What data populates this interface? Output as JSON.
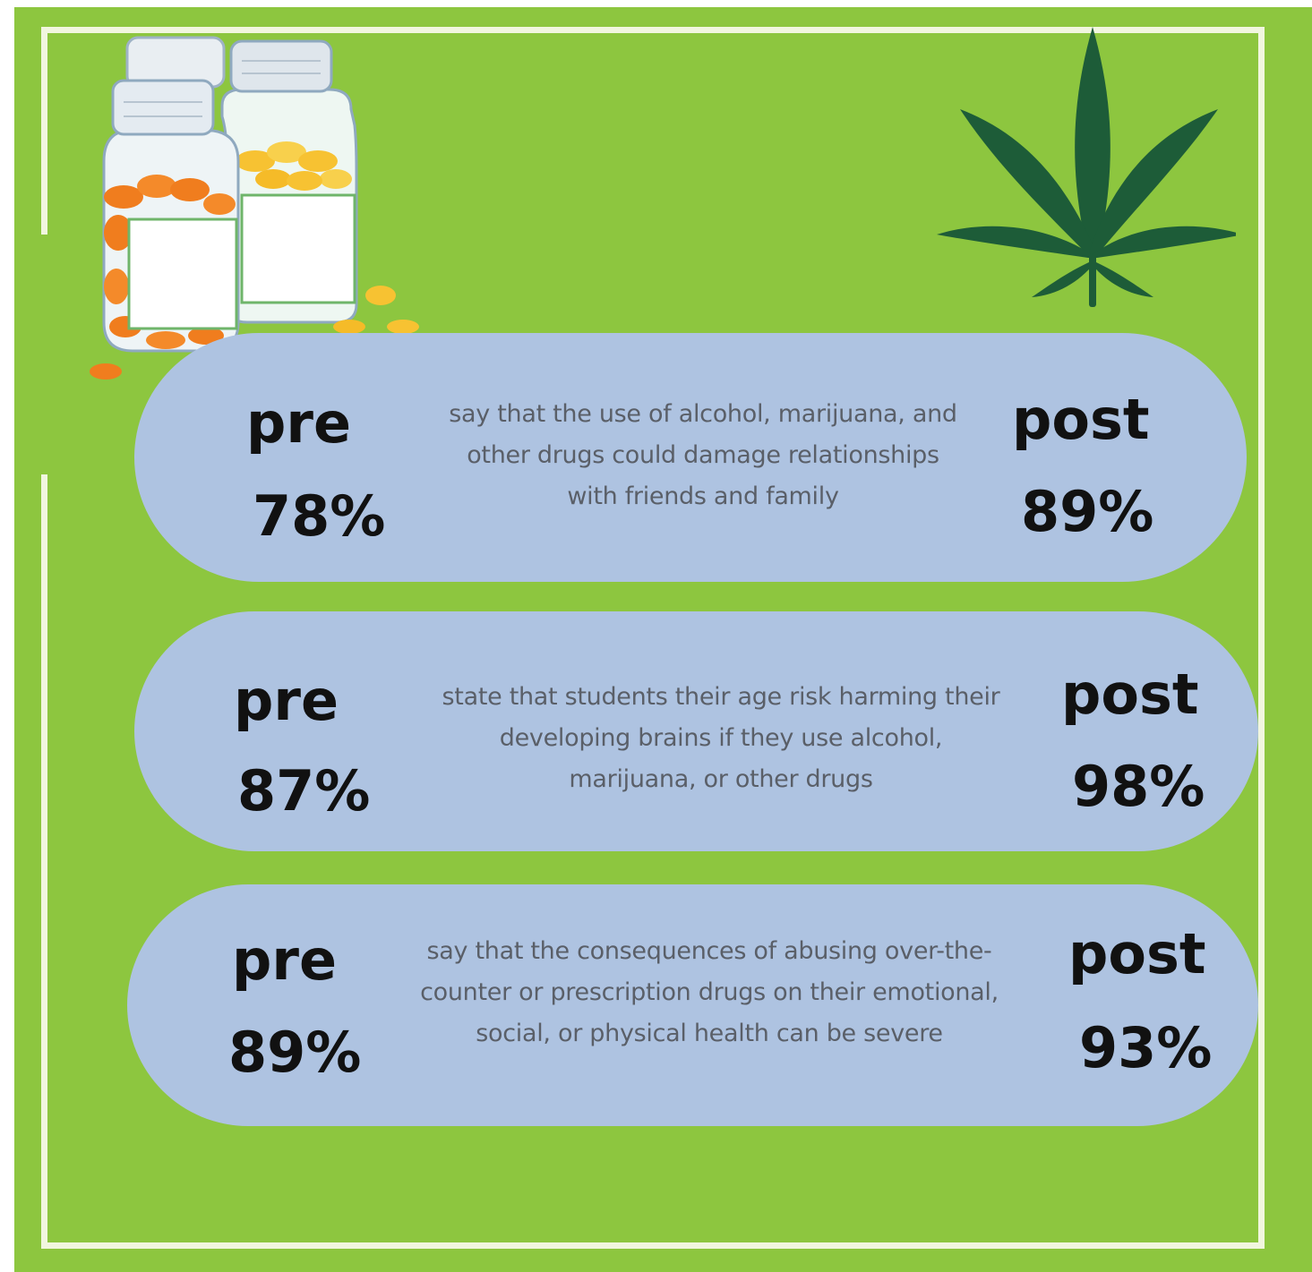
{
  "colors": {
    "background": "#8dc63f",
    "frame": "#f1f6df",
    "pill": "#aec3e1",
    "leaf": "#1d5c38",
    "pill_orange": "#f07d1e",
    "pill_yellow": "#f7c232"
  },
  "icons": [
    "pill-bottles-icon",
    "cannabis-leaf-icon"
  ],
  "stats": [
    {
      "pre_label": "pre",
      "pre_value": "78%",
      "description": "say that the use of alcohol, marijuana, and other drugs could damage relationships with friends and family",
      "post_label": "post",
      "post_value": "89%"
    },
    {
      "pre_label": "pre",
      "pre_value": "87%",
      "description": "state that students their age risk harming their developing brains if they use alcohol, marijuana, or other drugs",
      "post_label": "post",
      "post_value": "98%"
    },
    {
      "pre_label": "pre",
      "pre_value": "89%",
      "description": "say that the consequences of abusing over-the-counter or prescription drugs on their emotional, social, or physical health can be severe",
      "post_label": "post",
      "post_value": "93%"
    }
  ]
}
